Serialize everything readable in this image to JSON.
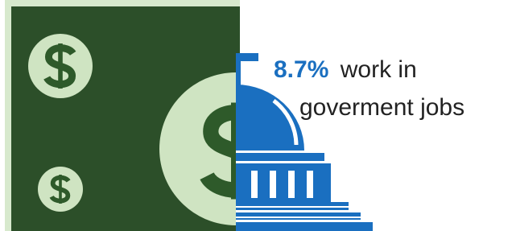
{
  "stat": {
    "value": "8.7%",
    "line1": "work in",
    "line2": "goverment jobs"
  }
}
